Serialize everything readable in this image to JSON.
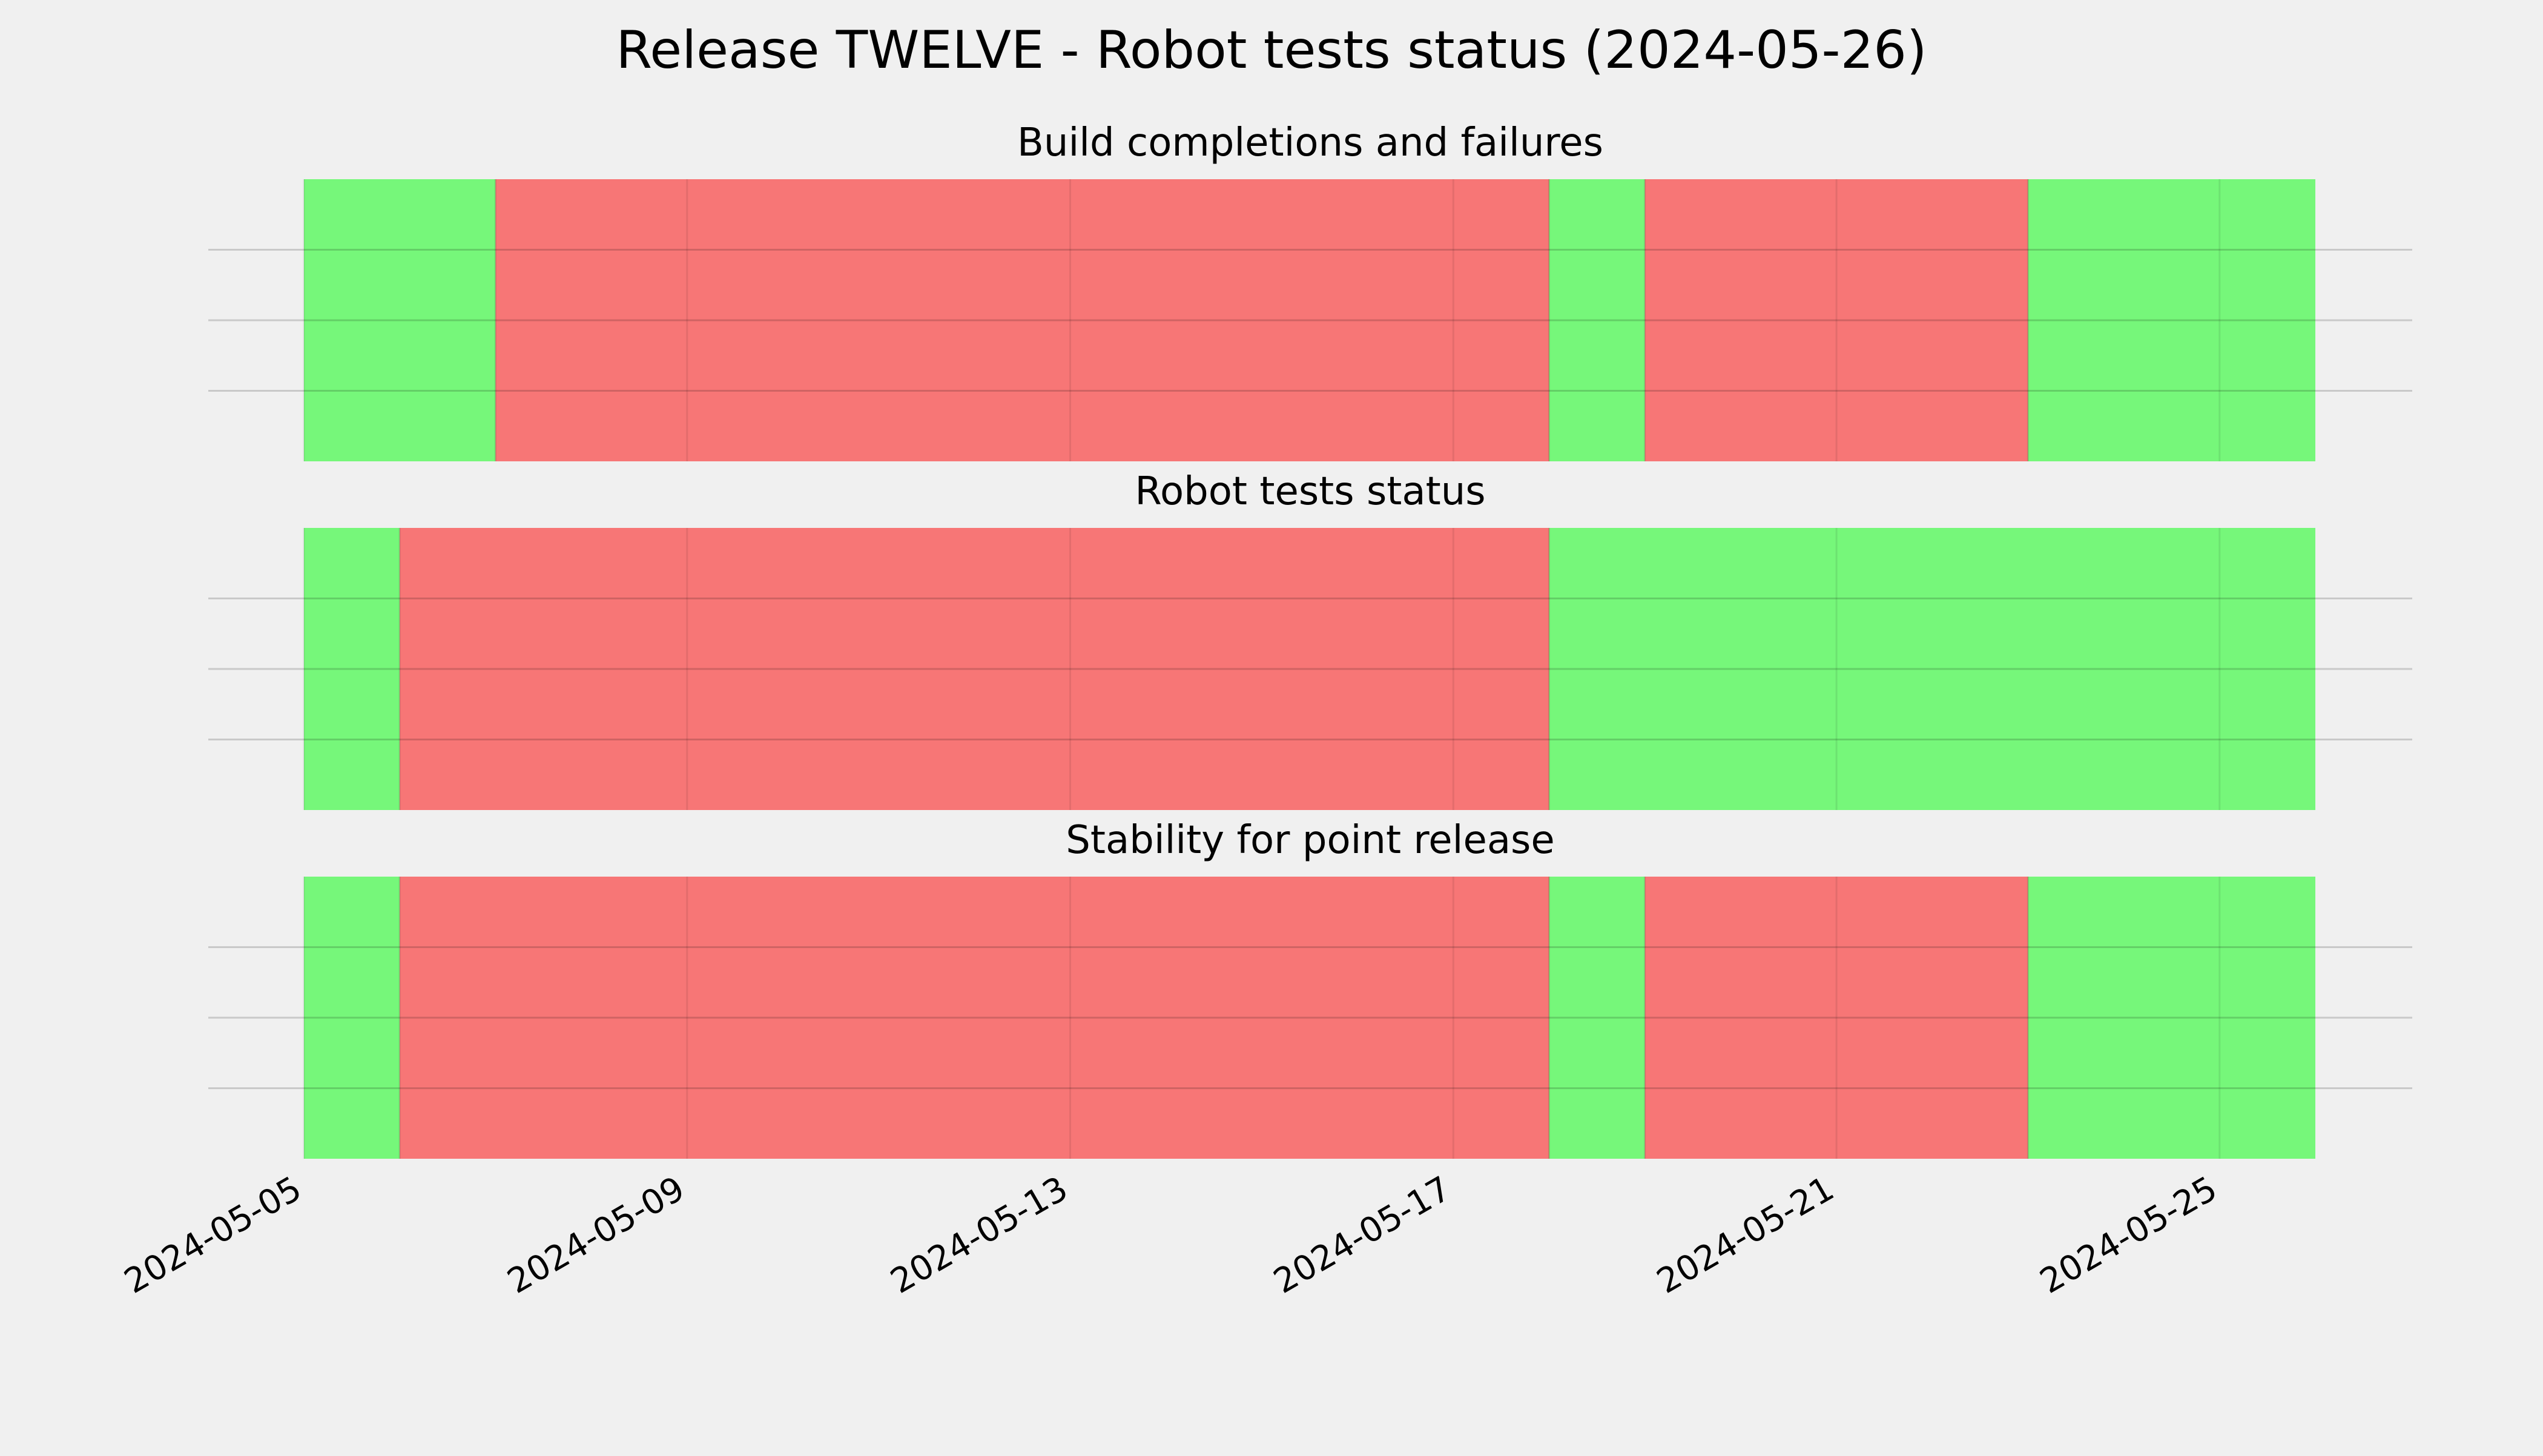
{
  "chart_data": {
    "type": "timeline",
    "title": "Release TWELVE - Robot tests status (2024-05-26)",
    "x_axis": {
      "type": "date",
      "range": [
        "2024-05-05",
        "2024-05-26"
      ],
      "ticks": [
        "2024-05-05",
        "2024-05-09",
        "2024-05-13",
        "2024-05-17",
        "2024-05-21",
        "2024-05-25"
      ]
    },
    "grid": true,
    "colors": {
      "pass": "#76f77a",
      "fail": "#f77676",
      "background": "#f0f0f0",
      "grid": "#cccccc"
    },
    "panels": [
      {
        "title": "Build completions and failures",
        "segments": [
          {
            "start": "2024-05-05",
            "end": "2024-05-07",
            "status": "pass"
          },
          {
            "start": "2024-05-07",
            "end": "2024-05-18",
            "status": "fail"
          },
          {
            "start": "2024-05-18",
            "end": "2024-05-19",
            "status": "pass"
          },
          {
            "start": "2024-05-19",
            "end": "2024-05-23",
            "status": "fail"
          },
          {
            "start": "2024-05-23",
            "end": "2024-05-26",
            "status": "pass"
          }
        ]
      },
      {
        "title": "Robot tests status",
        "segments": [
          {
            "start": "2024-05-05",
            "end": "2024-05-06",
            "status": "pass"
          },
          {
            "start": "2024-05-06",
            "end": "2024-05-18",
            "status": "fail"
          },
          {
            "start": "2024-05-18",
            "end": "2024-05-26",
            "status": "pass"
          }
        ]
      },
      {
        "title": "Stability for point release",
        "segments": [
          {
            "start": "2024-05-05",
            "end": "2024-05-06",
            "status": "pass"
          },
          {
            "start": "2024-05-06",
            "end": "2024-05-18",
            "status": "fail"
          },
          {
            "start": "2024-05-18",
            "end": "2024-05-19",
            "status": "pass"
          },
          {
            "start": "2024-05-19",
            "end": "2024-05-23",
            "status": "fail"
          },
          {
            "start": "2024-05-23",
            "end": "2024-05-26",
            "status": "pass"
          }
        ]
      }
    ]
  }
}
